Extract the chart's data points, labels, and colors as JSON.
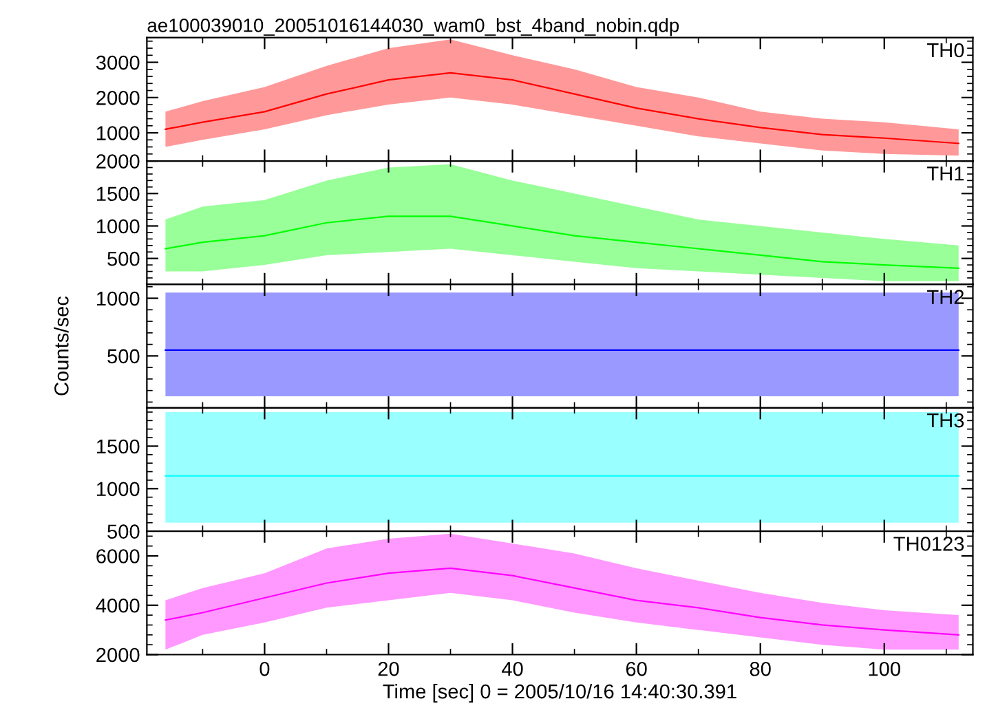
{
  "chart_data": [
    {
      "type": "line",
      "title": "ae100039010_20051016144030_wam0_bst_4band_nobin.qdp",
      "xlim": [
        -19,
        114.3
      ],
      "xticks": [
        0,
        20,
        40,
        60,
        80,
        100
      ],
      "ylim": [
        200,
        3700
      ],
      "yticks": [
        1000,
        2000,
        3000
      ],
      "tick_labels": "y",
      "grid": false,
      "legend": false,
      "x": [
        -16,
        -10,
        0,
        10,
        20,
        30,
        40,
        50,
        60,
        70,
        80,
        90,
        100,
        112
      ],
      "series": [
        {
          "name": "TH0",
          "color": "#ff0000",
          "values": [
            1100,
            1300,
            1600,
            2100,
            2500,
            2700,
            2500,
            2100,
            1700,
            1400,
            1150,
            950,
            850,
            700
          ],
          "upper": [
            1600,
            1900,
            2300,
            2900,
            3400,
            3650,
            3200,
            2800,
            2300,
            2000,
            1600,
            1400,
            1300,
            1100
          ],
          "lower": [
            600,
            800,
            1100,
            1500,
            1800,
            2000,
            1800,
            1500,
            1200,
            900,
            700,
            500,
            400,
            350
          ]
        }
      ]
    },
    {
      "type": "line",
      "xlim": [
        -19,
        114.3
      ],
      "xticks": [
        0,
        20,
        40,
        60,
        80,
        100
      ],
      "ylim": [
        100,
        2000
      ],
      "yticks": [
        500,
        1000,
        1500,
        2000
      ],
      "tick_labels": "y",
      "grid": false,
      "legend": false,
      "x": [
        -16,
        -10,
        0,
        10,
        20,
        30,
        40,
        50,
        60,
        70,
        80,
        90,
        100,
        112
      ],
      "series": [
        {
          "name": "TH1",
          "color": "#00ff00",
          "values": [
            650,
            750,
            850,
            1050,
            1150,
            1150,
            1000,
            850,
            750,
            650,
            550,
            450,
            400,
            350
          ],
          "upper": [
            1100,
            1300,
            1400,
            1700,
            1900,
            1950,
            1700,
            1500,
            1300,
            1100,
            1000,
            900,
            800,
            700
          ],
          "lower": [
            300,
            300,
            400,
            550,
            600,
            650,
            550,
            450,
            350,
            300,
            250,
            200,
            150,
            150
          ]
        }
      ]
    },
    {
      "type": "line",
      "ylabel": "Counts/sec",
      "xlim": [
        -19,
        114.3
      ],
      "xticks": [
        0,
        20,
        40,
        60,
        80,
        100
      ],
      "ylim": [
        50,
        1120
      ],
      "yticks": [
        500,
        1000
      ],
      "tick_labels": "y",
      "grid": false,
      "legend": false,
      "x": [
        -16,
        -10,
        0,
        10,
        20,
        30,
        40,
        50,
        60,
        70,
        80,
        90,
        100,
        112
      ],
      "series": [
        {
          "name": "TH2",
          "color": "#0000ff",
          "values": [
            550,
            550,
            550,
            550,
            550,
            550,
            550,
            550,
            550,
            550,
            550,
            550,
            550,
            550
          ],
          "upper": [
            1050,
            1050,
            1050,
            1050,
            1050,
            1050,
            1050,
            1050,
            1050,
            1050,
            1050,
            1050,
            1050,
            1050
          ],
          "lower": [
            150,
            150,
            150,
            150,
            150,
            150,
            150,
            150,
            150,
            150,
            150,
            150,
            150,
            150
          ]
        }
      ]
    },
    {
      "type": "line",
      "xlim": [
        -19,
        114.3
      ],
      "xticks": [
        0,
        20,
        40,
        60,
        80,
        100
      ],
      "ylim": [
        500,
        1950
      ],
      "yticks": [
        500,
        1000,
        1500
      ],
      "tick_labels": "y",
      "grid": false,
      "legend": false,
      "x": [
        -16,
        -10,
        0,
        10,
        20,
        30,
        40,
        50,
        60,
        70,
        80,
        90,
        100,
        112
      ],
      "series": [
        {
          "name": "TH3",
          "color": "#00ffff",
          "values": [
            1150,
            1150,
            1150,
            1150,
            1150,
            1150,
            1150,
            1150,
            1150,
            1150,
            1150,
            1150,
            1150,
            1150
          ],
          "upper": [
            1900,
            1900,
            1900,
            1900,
            1900,
            1900,
            1900,
            1900,
            1900,
            1900,
            1900,
            1900,
            1900,
            1900
          ],
          "lower": [
            600,
            600,
            600,
            600,
            600,
            600,
            600,
            600,
            600,
            600,
            600,
            600,
            600,
            600
          ]
        }
      ]
    },
    {
      "type": "line",
      "xlabel": "Time [sec] 0 = 2005/10/16 14:40:30.391",
      "xlim": [
        -19,
        114.3
      ],
      "xticks": [
        0,
        20,
        40,
        60,
        80,
        100
      ],
      "ylim": [
        2000,
        7000
      ],
      "yticks": [
        2000,
        4000,
        6000
      ],
      "grid": false,
      "legend": false,
      "x": [
        -16,
        -10,
        0,
        10,
        20,
        30,
        40,
        50,
        60,
        70,
        80,
        90,
        100,
        112
      ],
      "series": [
        {
          "name": "TH0123",
          "color": "#ff00ff",
          "values": [
            3400,
            3700,
            4300,
            4900,
            5300,
            5500,
            5200,
            4700,
            4200,
            3900,
            3500,
            3200,
            3000,
            2800
          ],
          "upper": [
            4200,
            4700,
            5300,
            6300,
            6700,
            6900,
            6500,
            6100,
            5500,
            5000,
            4500,
            4100,
            3800,
            3600
          ],
          "lower": [
            2200,
            2800,
            3300,
            3900,
            4200,
            4500,
            4200,
            3700,
            3300,
            3000,
            2700,
            2400,
            2200,
            2200
          ]
        }
      ]
    }
  ]
}
